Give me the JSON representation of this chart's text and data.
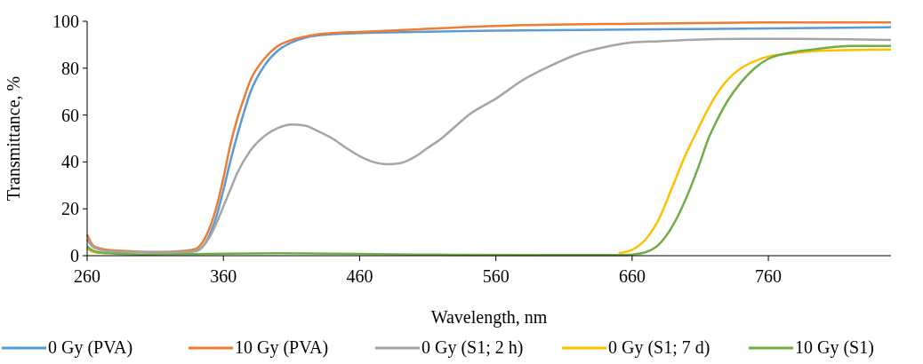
{
  "chart_data": {
    "type": "line",
    "xlabel": "Wavelength, nm",
    "ylabel": "Transmittance, %",
    "xlim": [
      260,
      850
    ],
    "ylim": [
      0,
      100
    ],
    "xticks": [
      260,
      360,
      460,
      560,
      660,
      760
    ],
    "yticks": [
      0,
      20,
      40,
      60,
      80,
      100
    ],
    "grid": false,
    "legend": "bottom",
    "line_style": "solid",
    "marker": "none",
    "series": [
      {
        "name": "0 Gy (PVA)",
        "color": "#5b9bd5",
        "x": [
          260,
          265,
          275,
          290,
          310,
          330,
          340,
          345,
          350,
          355,
          360,
          365,
          370,
          375,
          380,
          390,
          400,
          410,
          420,
          430,
          440,
          460,
          500,
          560,
          660,
          760,
          850
        ],
        "values": [
          7,
          3.5,
          2,
          1.5,
          1.5,
          1.5,
          2,
          4,
          9,
          17,
          28,
          40,
          51,
          61,
          70,
          81,
          87.5,
          91,
          93,
          94,
          94.5,
          95,
          95.5,
          96,
          96.5,
          97,
          97.5
        ]
      },
      {
        "name": "10 Gy (PVA)",
        "color": "#ed7d31",
        "x": [
          260,
          265,
          275,
          290,
          310,
          330,
          340,
          345,
          350,
          355,
          360,
          365,
          370,
          375,
          380,
          390,
          400,
          410,
          420,
          430,
          440,
          460,
          500,
          560,
          660,
          760,
          850
        ],
        "values": [
          9,
          4,
          2.5,
          2,
          1.5,
          2,
          3,
          6,
          12,
          21,
          33,
          47,
          58,
          67,
          75,
          84,
          89.5,
          92,
          93.5,
          94.5,
          95,
          95.5,
          96.5,
          98,
          99,
          99.5,
          99.5
        ]
      },
      {
        "name": "0 Gy (S1; 2 h)",
        "color": "#a5a5a5",
        "x": [
          260,
          265,
          275,
          290,
          310,
          330,
          340,
          345,
          350,
          355,
          360,
          365,
          370,
          380,
          390,
          400,
          410,
          420,
          430,
          440,
          450,
          460,
          470,
          480,
          490,
          500,
          510,
          520,
          530,
          540,
          560,
          580,
          600,
          620,
          640,
          660,
          680,
          700,
          740,
          780,
          850
        ],
        "values": [
          7,
          3.5,
          2,
          1.5,
          1.5,
          1.5,
          2,
          4,
          8,
          14,
          21,
          28,
          35,
          45,
          51,
          54.5,
          56,
          55.5,
          53,
          50,
          46,
          42.5,
          40,
          39,
          39.5,
          42,
          46,
          50,
          55,
          60,
          67,
          75,
          81,
          86,
          89,
          91,
          91.5,
          92,
          92.5,
          92.5,
          92
        ]
      },
      {
        "name": "0 Gy (S1; 7 d)",
        "color": "#ffc000",
        "x": [
          260,
          265,
          275,
          300,
          400,
          500,
          600,
          640,
          650,
          660,
          670,
          680,
          690,
          700,
          705,
          710,
          720,
          730,
          740,
          750,
          760,
          780,
          800,
          850
        ],
        "values": [
          3,
          1.5,
          1,
          null,
          null,
          null,
          null,
          null,
          1,
          2.5,
          7,
          16,
          30,
          44,
          50,
          56,
          67,
          75,
          80,
          83,
          85,
          86.5,
          87.5,
          88
        ]
      },
      {
        "name": "10 Gy (S1)",
        "color": "#70ad47",
        "x": [
          260,
          265,
          275,
          300,
          400,
          500,
          600,
          650,
          660,
          670,
          680,
          690,
          700,
          710,
          716,
          720,
          730,
          740,
          750,
          760,
          780,
          800,
          820,
          850
        ],
        "values": [
          4,
          2,
          1,
          0.5,
          1,
          0.5,
          0.3,
          0.3,
          0.5,
          1.5,
          5,
          13,
          25,
          40,
          50,
          55,
          66,
          74,
          80,
          84,
          87,
          88.5,
          89.5,
          89.5
        ]
      }
    ]
  }
}
